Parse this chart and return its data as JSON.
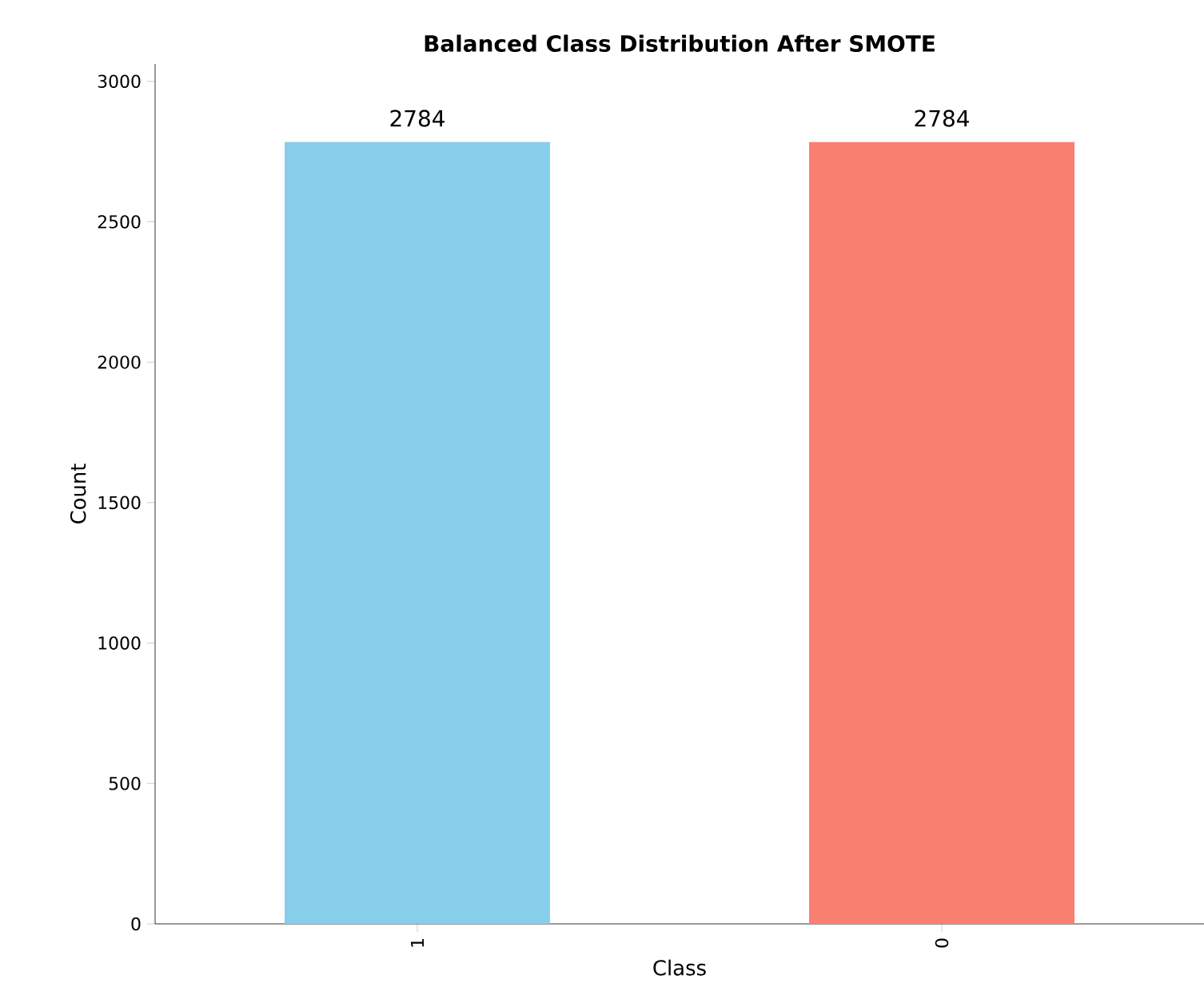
{
  "chart_data": {
    "type": "bar",
    "title": "Balanced Class Distribution After SMOTE",
    "xlabel": "Class",
    "ylabel": "Count",
    "categories": [
      "1",
      "0"
    ],
    "values": [
      2784,
      2784
    ],
    "colors": [
      "#87ceeb",
      "#fa8072"
    ],
    "ylim": [
      0,
      3062
    ],
    "yticks": [
      0,
      500,
      1000,
      1500,
      2000,
      2500,
      3000
    ],
    "data_labels": true
  }
}
